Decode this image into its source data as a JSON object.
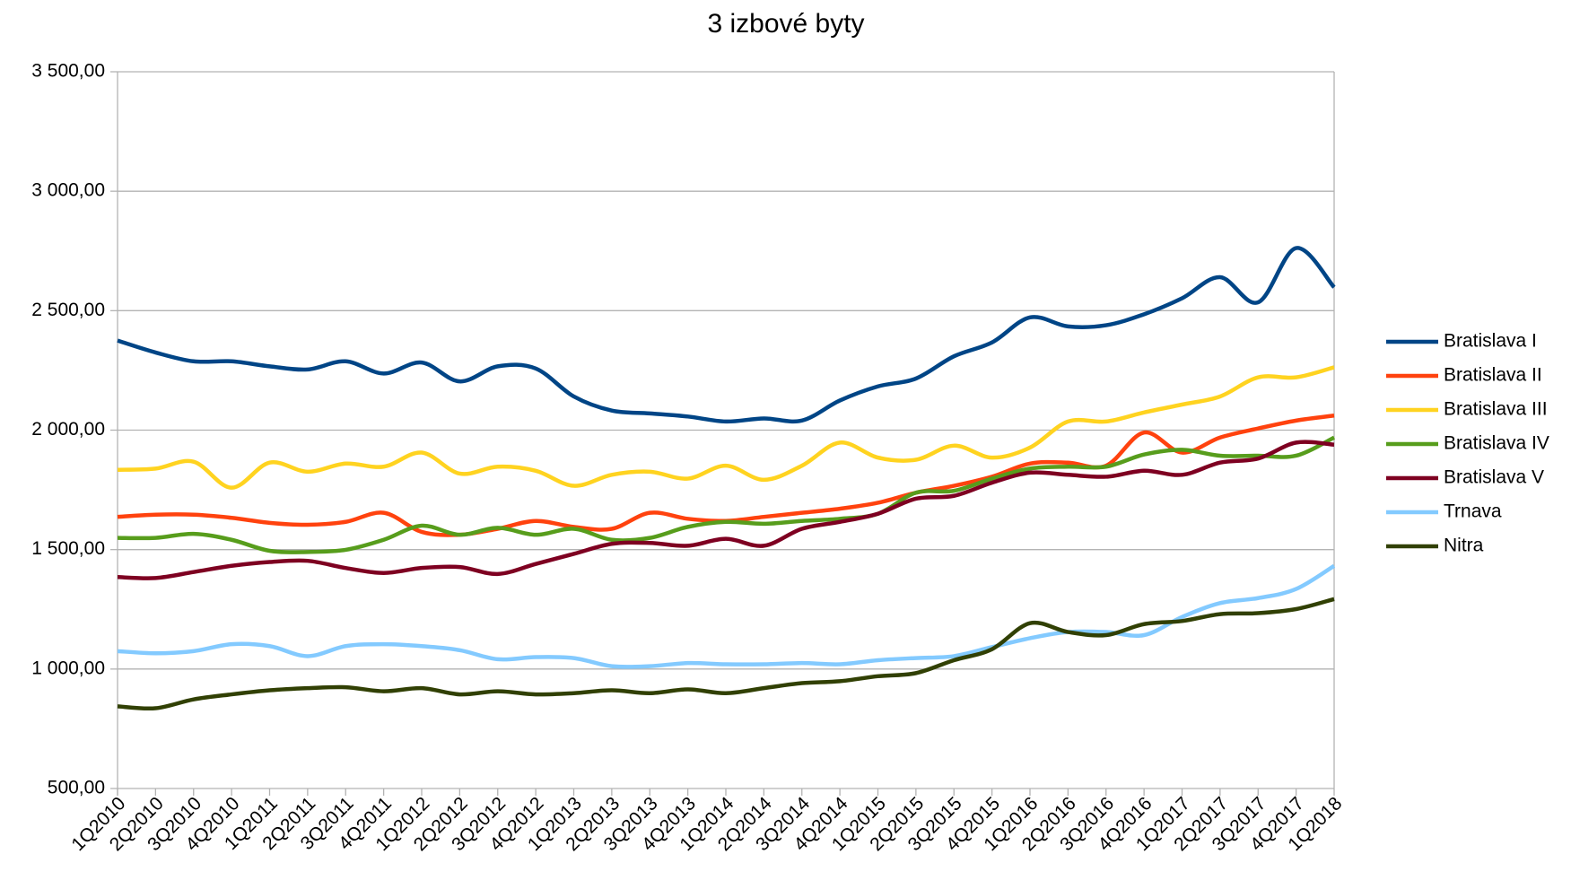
{
  "chart_data": {
    "type": "line",
    "title": "3 izbové byty",
    "categories": [
      "1Q2010",
      "2Q2010",
      "3Q2010",
      "4Q2010",
      "1Q2011",
      "2Q2011",
      "3Q2011",
      "4Q2011",
      "1Q2012",
      "2Q2012",
      "3Q2012",
      "4Q2012",
      "1Q2013",
      "2Q2013",
      "3Q2013",
      "4Q2013",
      "1Q2014",
      "2Q2014",
      "3Q2014",
      "4Q2014",
      "1Q2015",
      "2Q2015",
      "3Q2015",
      "4Q2015",
      "1Q2016",
      "2Q2016",
      "3Q2016",
      "4Q2016",
      "1Q2017",
      "2Q2017",
      "3Q2017",
      "4Q2017",
      "1Q2018"
    ],
    "series": [
      {
        "name": "Bratislava I",
        "color": "#004586",
        "values": [
          2375,
          2325,
          2288,
          2288,
          2267,
          2254,
          2288,
          2237,
          2283,
          2204,
          2267,
          2258,
          2141,
          2082,
          2070,
          2057,
          2036,
          2049,
          2040,
          2124,
          2183,
          2216,
          2309,
          2367,
          2472,
          2434,
          2439,
          2485,
          2552,
          2640,
          2535,
          2762,
          2598
        ]
      },
      {
        "name": "Bratislava II",
        "color": "#ff420e",
        "values": [
          1637,
          1646,
          1646,
          1633,
          1612,
          1604,
          1616,
          1654,
          1574,
          1562,
          1587,
          1620,
          1595,
          1587,
          1654,
          1629,
          1620,
          1637,
          1654,
          1671,
          1696,
          1738,
          1767,
          1805,
          1860,
          1864,
          1851,
          1990,
          1906,
          1969,
          2007,
          2040,
          2061
        ]
      },
      {
        "name": "Bratislava III",
        "color": "#ffd320",
        "values": [
          1834,
          1839,
          1868,
          1759,
          1864,
          1826,
          1860,
          1847,
          1906,
          1818,
          1847,
          1830,
          1767,
          1813,
          1826,
          1797,
          1851,
          1792,
          1851,
          1948,
          1885,
          1876,
          1935,
          1885,
          1927,
          2036,
          2036,
          2074,
          2107,
          2141,
          2221,
          2221,
          2263
        ]
      },
      {
        "name": "Bratislava IV",
        "color": "#579d1c",
        "values": [
          1549,
          1549,
          1566,
          1541,
          1495,
          1490,
          1499,
          1541,
          1600,
          1562,
          1591,
          1562,
          1587,
          1541,
          1549,
          1595,
          1616,
          1608,
          1620,
          1629,
          1650,
          1738,
          1746,
          1797,
          1839,
          1847,
          1847,
          1898,
          1918,
          1893,
          1893,
          1893,
          1969
        ]
      },
      {
        "name": "Bratislava V",
        "color": "#7e0021",
        "values": [
          1385,
          1381,
          1406,
          1432,
          1448,
          1453,
          1423,
          1402,
          1423,
          1427,
          1398,
          1440,
          1482,
          1524,
          1528,
          1516,
          1545,
          1516,
          1587,
          1616,
          1650,
          1713,
          1725,
          1780,
          1822,
          1813,
          1805,
          1830,
          1813,
          1864,
          1881,
          1948,
          1939
        ]
      },
      {
        "name": "Trnava",
        "color": "#83caff",
        "values": [
          1075,
          1066,
          1075,
          1104,
          1096,
          1054,
          1096,
          1104,
          1096,
          1079,
          1041,
          1050,
          1046,
          1012,
          1012,
          1025,
          1020,
          1020,
          1025,
          1020,
          1037,
          1046,
          1054,
          1092,
          1129,
          1155,
          1155,
          1142,
          1218,
          1276,
          1297,
          1335,
          1432
        ]
      },
      {
        "name": "Nitra",
        "color": "#314004",
        "values": [
          844,
          836,
          873,
          894,
          911,
          920,
          924,
          907,
          920,
          894,
          907,
          894,
          899,
          911,
          899,
          915,
          899,
          920,
          941,
          949,
          970,
          983,
          1037,
          1083,
          1192,
          1155,
          1142,
          1188,
          1201,
          1230,
          1234,
          1251,
          1293
        ]
      }
    ],
    "ylim": [
      500,
      3500
    ],
    "yticks": [
      {
        "value": 500,
        "label": "500,00"
      },
      {
        "value": 1000,
        "label": "1 000,00"
      },
      {
        "value": 1500,
        "label": "1 500,00"
      },
      {
        "value": 2000,
        "label": "2 000,00"
      },
      {
        "value": 2500,
        "label": "2 500,00"
      },
      {
        "value": 3000,
        "label": "3 000,00"
      },
      {
        "value": 3500,
        "label": "3 500,00"
      }
    ],
    "grid": true,
    "legend": "right"
  }
}
